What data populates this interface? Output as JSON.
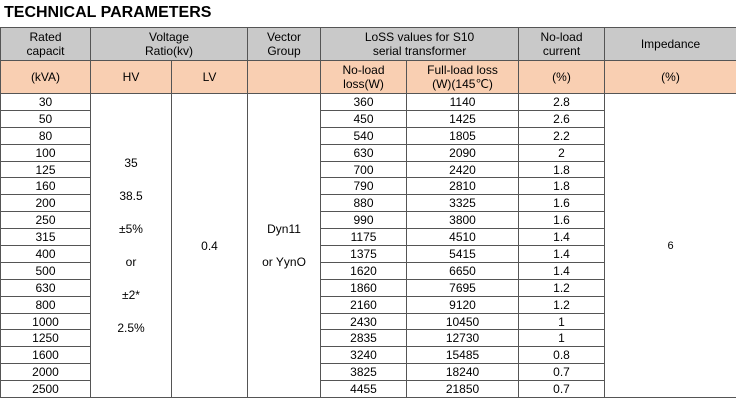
{
  "title": "TECHNICAL PARAMETERS",
  "header_row1": [
    {
      "lines": [
        "Rated",
        "capacit"
      ]
    },
    {
      "lines": [
        "Voltage",
        "Ratio(kv)"
      ]
    },
    {
      "lines": [
        "Vector",
        "Group"
      ]
    },
    {
      "lines": [
        "LoSS values for S10",
        "serial transformer"
      ]
    },
    {
      "lines": [
        "No-load",
        "current"
      ]
    },
    {
      "lines": [
        "Impedance"
      ]
    }
  ],
  "header_row2": [
    {
      "lines": [
        "(kVA)"
      ]
    },
    {
      "lines": [
        "HV"
      ]
    },
    {
      "lines": [
        "LV"
      ]
    },
    {
      "lines": []
    },
    {
      "lines": [
        "No-load",
        "loss(W)"
      ]
    },
    {
      "lines": [
        "Full-load loss",
        "(W)(145℃)"
      ]
    },
    {
      "lines": [
        "(%)"
      ]
    },
    {
      "lines": [
        "(%)"
      ]
    }
  ],
  "hv": [
    "35",
    "38.5",
    "±5%",
    "or",
    "±2*",
    "2.5%"
  ],
  "lv": "0.4",
  "vector_group": [
    "Dyn11",
    "or YynO"
  ],
  "impedance": "6",
  "table": {
    "rows": [
      [
        30,
        360,
        1140,
        2.8
      ],
      [
        50,
        450,
        1425,
        2.6
      ],
      [
        80,
        540,
        1805,
        2.2
      ],
      [
        100,
        630,
        2090,
        2
      ],
      [
        125,
        700,
        2420,
        1.8
      ],
      [
        160,
        790,
        2810,
        1.8
      ],
      [
        200,
        880,
        3325,
        1.6
      ],
      [
        250,
        990,
        3800,
        1.6
      ],
      [
        315,
        1175,
        4510,
        1.4
      ],
      [
        400,
        1375,
        5415,
        1.4
      ],
      [
        500,
        1620,
        6650,
        1.4
      ],
      [
        630,
        1860,
        7695,
        1.2
      ],
      [
        800,
        2160,
        9120,
        1.2
      ],
      [
        1000,
        2430,
        10450,
        1
      ],
      [
        1250,
        2835,
        12730,
        1
      ],
      [
        1600,
        3240,
        15485,
        0.8
      ],
      [
        2000,
        3825,
        18240,
        0.7
      ],
      [
        2500,
        4455,
        21850,
        0.7
      ]
    ]
  }
}
